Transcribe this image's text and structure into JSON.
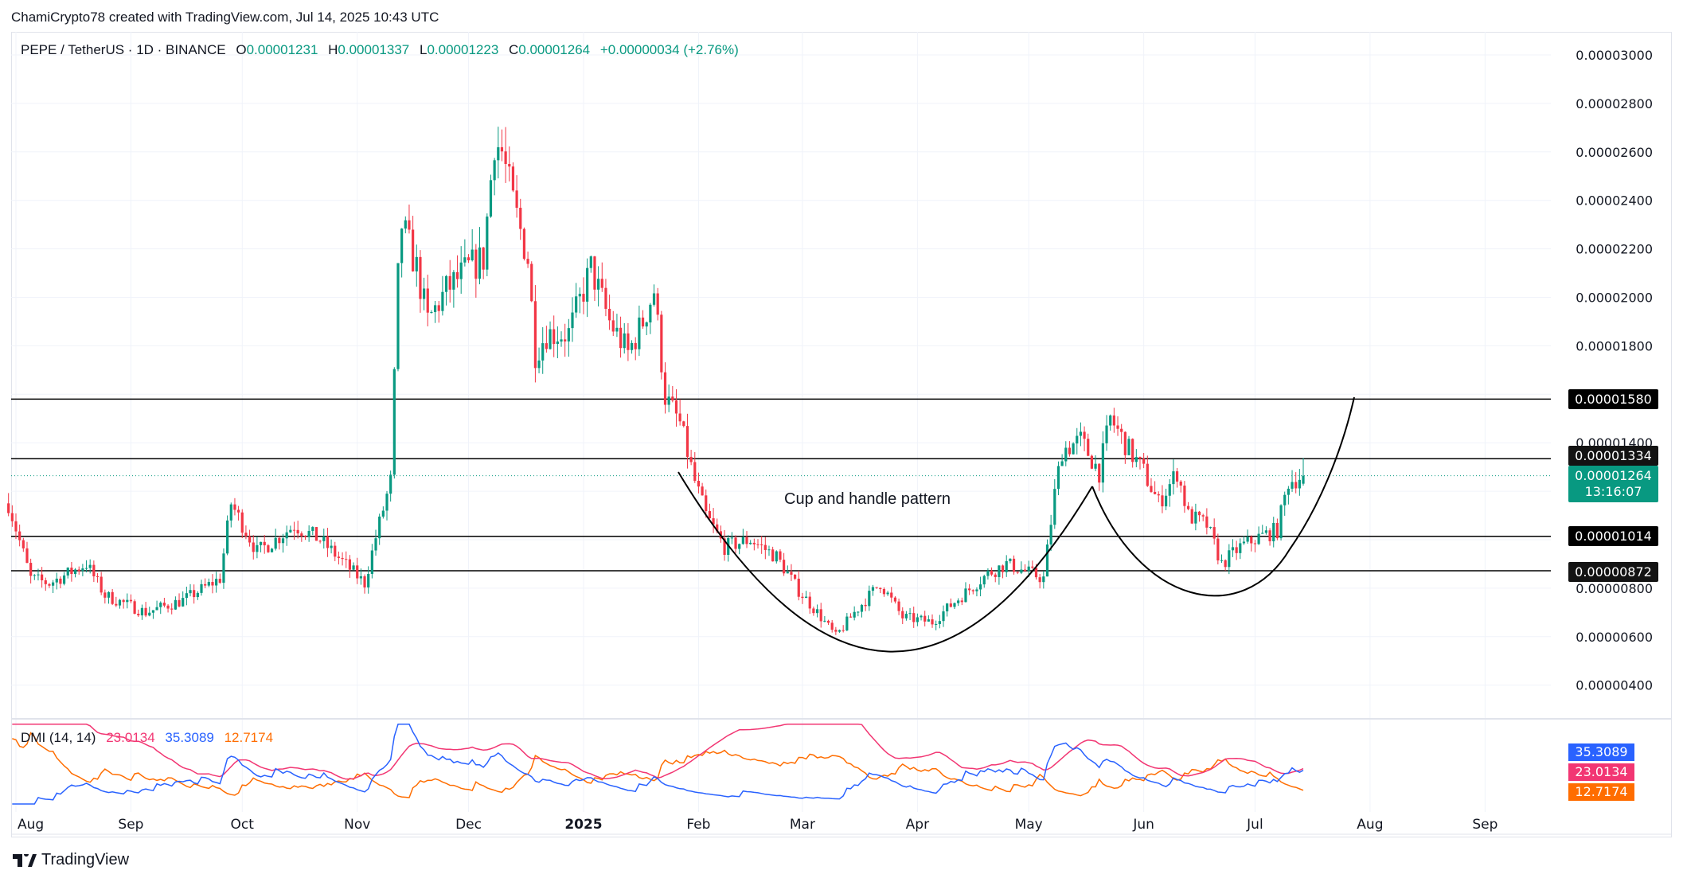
{
  "header": {
    "credit": "ChamiCrypto78 created with TradingView.com, Jul 14, 2025 10:43 UTC"
  },
  "legend": {
    "symbol": "PEPE / TetherUS · 1D · BINANCE",
    "open_label": "O",
    "open": "0.00001231",
    "high_label": "H",
    "high": "0.00001337",
    "low_label": "L",
    "low": "0.00001223",
    "close_label": "C",
    "close": "0.00001264",
    "change": "+0.00000034 (+2.76%)"
  },
  "colors": {
    "up": "#089981",
    "down": "#f23645",
    "adx": "#f23673",
    "plus_di": "#2962ff",
    "minus_di": "#ff6d00",
    "grid": "#f0f3fa",
    "level": "#000000",
    "last_price": "#089981"
  },
  "annotation": {
    "text": "Cup and handle pattern"
  },
  "price_axis": {
    "ticks": [
      "0.00003000",
      "0.00002800",
      "0.00002600",
      "0.00002400",
      "0.00002200",
      "0.00002000",
      "0.00001800",
      "0.00001400",
      "0.00000800",
      "0.00000600",
      "0.00000400"
    ],
    "levels": [
      "0.00001580",
      "0.00001334",
      "0.00001014",
      "0.00000872"
    ],
    "last_price": "0.00001264",
    "countdown": "13:16:07"
  },
  "time_axis": {
    "ticks": [
      {
        "label": "Aug",
        "date": "2024-08-01"
      },
      {
        "label": "Sep",
        "date": "2024-09-01"
      },
      {
        "label": "Oct",
        "date": "2024-10-01"
      },
      {
        "label": "Nov",
        "date": "2024-11-01"
      },
      {
        "label": "Dec",
        "date": "2024-12-01"
      },
      {
        "label": "2025",
        "date": "2025-01-01"
      },
      {
        "label": "Feb",
        "date": "2025-02-01"
      },
      {
        "label": "Mar",
        "date": "2025-03-01"
      },
      {
        "label": "Apr",
        "date": "2025-04-01"
      },
      {
        "label": "May",
        "date": "2025-05-01"
      },
      {
        "label": "Jun",
        "date": "2025-06-01"
      },
      {
        "label": "Jul",
        "date": "2025-07-01"
      },
      {
        "label": "Aug",
        "date": "2025-08-01"
      },
      {
        "label": "Sep",
        "date": "2025-09-01"
      }
    ]
  },
  "dmi": {
    "title": "DMI (14, 14)",
    "adx": "23.0134",
    "plus_di": "35.3089",
    "minus_di": "12.7174"
  },
  "footer": {
    "brand": "TradingView"
  },
  "chart_data": {
    "type": "candlestick",
    "interval": "1D",
    "price_unit": "1e-5 USDT",
    "ylim": [
      3e-06,
      3.05e-05
    ],
    "grid": true,
    "approx_closes": [
      [
        "2024-07-30",
        1.15
      ],
      [
        "2024-08-05",
        0.84
      ],
      [
        "2024-08-10",
        0.82
      ],
      [
        "2024-08-20",
        0.9
      ],
      [
        "2024-08-25",
        0.77
      ],
      [
        "2024-09-05",
        0.7
      ],
      [
        "2024-09-15",
        0.75
      ],
      [
        "2024-09-25",
        0.84
      ],
      [
        "2024-09-28",
        1.15
      ],
      [
        "2024-10-05",
        0.95
      ],
      [
        "2024-10-10",
        1.0
      ],
      [
        "2024-10-15",
        1.06
      ],
      [
        "2024-10-22",
        1.0
      ],
      [
        "2024-10-30",
        0.88
      ],
      [
        "2024-11-03",
        0.82
      ],
      [
        "2024-11-06",
        1.01
      ],
      [
        "2024-11-10",
        1.24
      ],
      [
        "2024-11-12",
        2.08
      ],
      [
        "2024-11-13",
        2.3
      ],
      [
        "2024-11-17",
        2.12
      ],
      [
        "2024-11-20",
        1.9
      ],
      [
        "2024-11-25",
        2.03
      ],
      [
        "2024-12-01",
        2.12
      ],
      [
        "2024-12-05",
        2.16
      ],
      [
        "2024-12-08",
        2.65
      ],
      [
        "2024-12-10",
        2.6
      ],
      [
        "2024-12-13",
        2.39
      ],
      [
        "2024-12-17",
        2.16
      ],
      [
        "2024-12-19",
        1.77
      ],
      [
        "2024-12-22",
        1.85
      ],
      [
        "2024-12-28",
        1.85
      ],
      [
        "2025-01-03",
        2.12
      ],
      [
        "2025-01-08",
        1.9
      ],
      [
        "2025-01-13",
        1.77
      ],
      [
        "2025-01-17",
        1.9
      ],
      [
        "2025-01-20",
        2.03
      ],
      [
        "2025-01-23",
        1.59
      ],
      [
        "2025-01-27",
        1.48
      ],
      [
        "2025-01-31",
        1.24
      ],
      [
        "2025-02-03",
        1.1
      ],
      [
        "2025-02-08",
        0.97
      ],
      [
        "2025-02-15",
        1.0
      ],
      [
        "2025-02-22",
        0.93
      ],
      [
        "2025-02-28",
        0.79
      ],
      [
        "2025-03-05",
        0.7
      ],
      [
        "2025-03-10",
        0.6
      ],
      [
        "2025-03-15",
        0.7
      ],
      [
        "2025-03-22",
        0.82
      ],
      [
        "2025-03-28",
        0.68
      ],
      [
        "2025-04-05",
        0.66
      ],
      [
        "2025-04-10",
        0.73
      ],
      [
        "2025-04-20",
        0.86
      ],
      [
        "2025-04-25",
        0.9
      ],
      [
        "2025-05-05",
        0.84
      ],
      [
        "2025-05-08",
        1.19
      ],
      [
        "2025-05-10",
        1.37
      ],
      [
        "2025-05-15",
        1.41
      ],
      [
        "2025-05-20",
        1.28
      ],
      [
        "2025-05-23",
        1.5
      ],
      [
        "2025-05-28",
        1.37
      ],
      [
        "2025-06-01",
        1.28
      ],
      [
        "2025-06-05",
        1.15
      ],
      [
        "2025-06-10",
        1.28
      ],
      [
        "2025-06-13",
        1.1
      ],
      [
        "2025-06-18",
        1.06
      ],
      [
        "2025-06-22",
        0.9
      ],
      [
        "2025-06-27",
        0.97
      ],
      [
        "2025-07-02",
        1.01
      ],
      [
        "2025-07-07",
        1.04
      ],
      [
        "2025-07-10",
        1.24
      ],
      [
        "2025-07-14",
        1.264
      ]
    ],
    "last_candle": {
      "date": "2025-07-14",
      "open": 1.231,
      "high": 1.337,
      "low": 1.223,
      "close": 1.264
    }
  }
}
